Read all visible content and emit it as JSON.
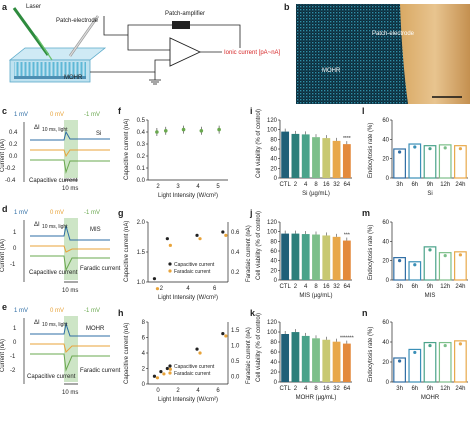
{
  "panel_labels": [
    "a",
    "b",
    "c",
    "d",
    "e",
    "f",
    "g",
    "h",
    "i",
    "j",
    "k",
    "l",
    "m",
    "n"
  ],
  "panel_a": {
    "laser": "Laser",
    "patch_electrode": "Patch-electrode",
    "patch_amplifier": "Patch-amplifier",
    "mohr": "MOHR",
    "ionic_current": "Ionic current [pA~nA]"
  },
  "panel_b": {
    "patch_electrode": "Patch-electrode",
    "mohr": "MOHR"
  },
  "colors": {
    "blue_trace": "#2e6da4",
    "orange_trace": "#e8a33a",
    "green_trace": "#6aa84f",
    "ionic_red": "#d62728",
    "teal": "#2b7a78"
  },
  "traces": {
    "legend": [
      "1 mV",
      "0 mV",
      "-1 mV"
    ],
    "ylabel": "Current (nA)",
    "delta_i": "ΔI",
    "delta_i_sub": "10 ms, light",
    "capacitive": "Capacitive current",
    "faradaic": "Faradic current",
    "scale": "10 ms",
    "c": {
      "material": "Si",
      "ticks": [
        "0.4",
        "0.2",
        "0.0",
        "-0.2",
        "-0.4"
      ]
    },
    "d": {
      "material": "MIS",
      "ticks": [
        "1",
        "0",
        "-1"
      ]
    },
    "e": {
      "material": "MOHR",
      "ticks": [
        "1",
        "0",
        "-1",
        "-2"
      ]
    }
  },
  "chart_data": [
    {
      "panel": "f",
      "type": "scatter",
      "xlabel": "Light Intensity (W/cm²)",
      "ylabel": "Capacitive current (nA)",
      "x": [
        1.5,
        2,
        3,
        4,
        5
      ],
      "series": [
        {
          "values": [
            0.4,
            0.41,
            0.42,
            0.41,
            0.42
          ]
        }
      ],
      "xticks": [
        "2",
        "3",
        "4",
        "5"
      ],
      "yticks": [
        "0.0",
        "0.1",
        "0.2",
        "0.3",
        "0.4",
        "0.5"
      ],
      "xlim": [
        1,
        5.5
      ],
      "ylim": [
        0,
        0.5
      ]
    },
    {
      "panel": "g",
      "type": "scatter",
      "xlabel": "Light Intensity (W/cm²)",
      "ylabel": "Capacitive current (nA)",
      "ylabel2": "Faradaic current (nA)",
      "x": [
        0.5,
        1.5,
        3.8,
        5.8
      ],
      "series": [
        {
          "name": "Capacitive current",
          "values": [
            0.6,
            1.8,
            1.9,
            2.0
          ]
        },
        {
          "name": "Faradaic current",
          "values": [
            0.3,
            1.6,
            1.8,
            1.9
          ]
        }
      ],
      "xticks": [
        "2",
        "4",
        "6"
      ],
      "yticks": [
        "1.0",
        "1.5",
        "2.0"
      ],
      "yticks2": [
        "0.2",
        "0.4",
        "0.6"
      ],
      "xlim": [
        0,
        6.2
      ],
      "ylim": [
        0.5,
        2.3
      ]
    },
    {
      "panel": "h",
      "type": "scatter",
      "xlabel": "Light Intensity (W/cm²)",
      "ylabel": "Capacitive current (nA)",
      "ylabel2": "Faradaic current (nA)",
      "x": [
        0.5,
        1,
        1.5,
        3.8,
        5.8
      ],
      "series": [
        {
          "name": "Capacitive current",
          "values": [
            1.0,
            1.6,
            2.0,
            4.5,
            6.5
          ]
        },
        {
          "name": "Faradaic current",
          "values": [
            0.8,
            1.3,
            1.9,
            4.0,
            6.2
          ]
        }
      ],
      "xticks": [
        "0",
        "2",
        "4",
        "6"
      ],
      "yticks": [
        "0",
        "2",
        "4",
        "6",
        "8"
      ],
      "yticks2": [
        "0.0",
        "0.5",
        "1.0",
        "1.5"
      ],
      "xlim": [
        0,
        6.2
      ],
      "ylim": [
        0,
        8
      ]
    },
    {
      "panel": "i",
      "type": "bar",
      "ylabel": "Cell viability (% of control)",
      "xlabel": "Si (µg/mL)",
      "categories": [
        "CTL",
        "2",
        "4",
        "8",
        "16",
        "32",
        "64"
      ],
      "values": [
        100,
        95,
        94,
        88,
        86,
        80,
        73
      ],
      "significance": "****",
      "yticks": [
        "0",
        "20",
        "40",
        "60",
        "80",
        "100",
        "120"
      ],
      "ylim": [
        0,
        125
      ]
    },
    {
      "panel": "j",
      "type": "bar",
      "ylabel": "Cell viability (% of control)",
      "xlabel": "MIS (µg/mL)",
      "categories": [
        "CTL",
        "2",
        "4",
        "8",
        "16",
        "32",
        "64"
      ],
      "values": [
        100,
        100,
        99,
        98,
        96,
        93,
        85
      ],
      "significance": "***",
      "yticks": [
        "0",
        "20",
        "40",
        "60",
        "80",
        "100",
        "120"
      ],
      "ylim": [
        0,
        125
      ]
    },
    {
      "panel": "k",
      "type": "bar",
      "ylabel": "Cell viability (% of control)",
      "xlabel": "MOHR (µg/mL)",
      "categories": [
        "CTL",
        "2",
        "4",
        "8",
        "16",
        "32",
        "64"
      ],
      "values": [
        100,
        104,
        96,
        91,
        88,
        84,
        80
      ],
      "significance": "*******",
      "yticks": [
        "0",
        "20",
        "40",
        "60",
        "80",
        "100",
        "120"
      ],
      "ylim": [
        0,
        125
      ]
    },
    {
      "panel": "l",
      "type": "bar",
      "ylabel": "Endocytosis rate (%)",
      "xlabel": "Si",
      "categories": [
        "3h",
        "6h",
        "9h",
        "12h",
        "24h"
      ],
      "values": [
        35,
        41,
        39,
        40,
        39
      ],
      "yticks": [
        "0",
        "20",
        "40",
        "60"
      ],
      "ylim": [
        0,
        70
      ]
    },
    {
      "panel": "m",
      "type": "bar",
      "ylabel": "Endocytosis rate (%)",
      "xlabel": "MIS",
      "categories": [
        "3h",
        "6h",
        "9h",
        "12h",
        "24h"
      ],
      "values": [
        27,
        22,
        40,
        33,
        34
      ],
      "yticks": [
        "0",
        "20",
        "40",
        "60"
      ],
      "ylim": [
        0,
        70
      ]
    },
    {
      "panel": "n",
      "type": "bar",
      "ylabel": "Endocytosis rate (%)",
      "xlabel": "MOHR",
      "categories": [
        "3h",
        "6h",
        "9h",
        "12h",
        "24h"
      ],
      "values": [
        28,
        38,
        46,
        46,
        48
      ],
      "yticks": [
        "0",
        "20",
        "40",
        "60"
      ],
      "ylim": [
        0,
        70
      ]
    }
  ]
}
